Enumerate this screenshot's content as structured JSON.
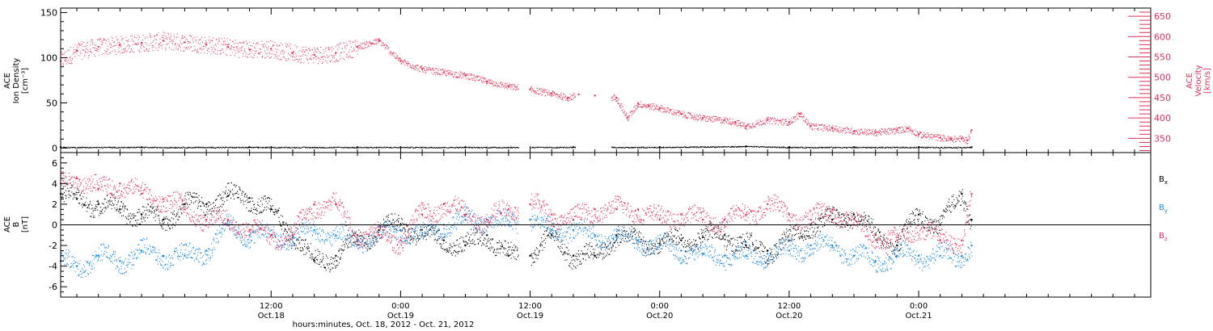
{
  "chart_data": [
    {
      "type": "scatter",
      "panel": "top",
      "xlabel": "hours:minutes, Oct. 18, 2012 - Oct. 21, 2012",
      "x_range_hours": [
        -7.5,
        93.5
      ],
      "x_ticks": [
        {
          "hours": 12,
          "time": "12:00",
          "date": "Oct.18"
        },
        {
          "hours": 24,
          "time": "0:00",
          "date": "Oct.19"
        },
        {
          "hours": 36,
          "time": "12:00",
          "date": "Oct.19"
        },
        {
          "hours": 48,
          "time": "0:00",
          "date": "Oct.20"
        },
        {
          "hours": 60,
          "time": "12:00",
          "date": "Oct.20"
        },
        {
          "hours": 72,
          "time": "0:00",
          "date": "Oct.21"
        }
      ],
      "y_left": {
        "label_lines": [
          "ACE",
          "Ion Density",
          "[cm⁻³]"
        ],
        "ylim": [
          -5,
          155
        ],
        "ticks": [
          0,
          50,
          100,
          150
        ],
        "color": "#000000"
      },
      "y_right": {
        "label_lines": [
          "ACE",
          "Velocity",
          "[km/s]"
        ],
        "ylim": [
          315,
          670
        ],
        "ticks": [
          350,
          400,
          450,
          500,
          550,
          600,
          650
        ],
        "color": "#e0305a"
      },
      "series": [
        {
          "name": "",
          "axis": "right",
          "color": "#e0305a",
          "x": [
            -7.5,
            -6,
            -4,
            -2,
            0,
            2,
            4,
            6,
            8,
            10,
            12,
            14,
            16,
            18,
            20,
            22,
            24,
            26,
            28,
            30,
            32,
            34,
            36,
            38,
            39.5,
            40.5,
            42,
            44,
            45,
            46,
            47,
            48,
            50,
            52,
            54,
            55,
            56,
            58,
            60,
            61,
            62,
            64,
            66,
            68,
            70,
            71,
            72,
            74,
            75,
            76,
            76.5,
            76.9
          ],
          "y": [
            540,
            565,
            575,
            580,
            585,
            590,
            586,
            580,
            575,
            568,
            570,
            560,
            555,
            560,
            575,
            590,
            540,
            520,
            512,
            505,
            490,
            478,
            470,
            460,
            450,
            458,
            455,
            450,
            400,
            435,
            430,
            425,
            410,
            400,
            395,
            390,
            380,
            395,
            390,
            410,
            380,
            375,
            368,
            365,
            370,
            375,
            360,
            352,
            348,
            350,
            345,
            370
          ]
        },
        {
          "name": "",
          "axis": "left",
          "color": "#000000",
          "x": [
            -7.5,
            0,
            10,
            20,
            30,
            40,
            48,
            56,
            60,
            66,
            72,
            76.9
          ],
          "y": [
            1,
            1,
            1,
            1,
            1,
            1,
            1,
            2,
            1,
            1,
            1,
            1
          ]
        }
      ],
      "data_gaps_hours": [
        [
          34.9,
          36
        ],
        [
          40.2,
          43.5
        ]
      ]
    },
    {
      "type": "scatter",
      "panel": "bottom",
      "y_left": {
        "label_lines": [
          "ACE",
          "B",
          "[nT]"
        ],
        "ylim": [
          -7,
          7
        ],
        "ticks": [
          -6,
          -4,
          -2,
          0,
          2,
          4,
          6
        ],
        "color": "#000000"
      },
      "zero_line": true,
      "series": [
        {
          "name": "Bx",
          "color": "#000000",
          "x": [
            -7.5,
            -6,
            -4,
            -2,
            0,
            2,
            4,
            6,
            8,
            10,
            12,
            14,
            16,
            18,
            20,
            22,
            24,
            26,
            28,
            30,
            32,
            34,
            36,
            38,
            40,
            42,
            44,
            46,
            48,
            50,
            52,
            54,
            56,
            58,
            60,
            62,
            64,
            66,
            68,
            70,
            72,
            74,
            76,
            76.9
          ],
          "y": [
            3,
            2.5,
            2,
            1.5,
            1,
            0.5,
            2,
            2,
            2.8,
            2.6,
            1.5,
            -1,
            -3.5,
            -3,
            -1.5,
            -0.5,
            0,
            -1,
            -1.5,
            -2,
            -1,
            -3,
            -3,
            -1,
            -3,
            -3,
            -1,
            -1.5,
            -1.8,
            -1.5,
            -1.2,
            -1,
            -2,
            -2.5,
            -1.5,
            0,
            0.5,
            1,
            -1,
            -2,
            1,
            0,
            3,
            0.5
          ]
        },
        {
          "name": "By",
          "color": "#1a88e0",
          "x": [
            -7.5,
            -6,
            -4,
            -2,
            0,
            2,
            4,
            6,
            8,
            10,
            12,
            14,
            16,
            18,
            20,
            22,
            24,
            26,
            28,
            30,
            32,
            34,
            36,
            38,
            40,
            42,
            44,
            46,
            48,
            50,
            52,
            54,
            56,
            58,
            60,
            62,
            64,
            66,
            68,
            70,
            72,
            74,
            76,
            76.9
          ],
          "y": [
            -3.5,
            -4,
            -3,
            -3.5,
            -2.5,
            -3,
            -3,
            -2.5,
            0,
            -1,
            -1,
            -1.2,
            -0.5,
            -1,
            -1.5,
            -1,
            -0.5,
            -1,
            0,
            0.5,
            0.5,
            0,
            0.5,
            -0.5,
            -0.5,
            -1,
            -1.2,
            -1.5,
            -2,
            -2.5,
            -2.8,
            -3,
            -3,
            -2.8,
            -2.5,
            -2,
            -2,
            -3,
            -3.5,
            -3,
            -3,
            -3,
            -3,
            -2
          ]
        },
        {
          "name": "Bz",
          "color": "#e0305a",
          "x": [
            -7.5,
            -6,
            -4,
            -2,
            0,
            2,
            4,
            6,
            8,
            10,
            12,
            14,
            16,
            18,
            20,
            22,
            24,
            26,
            28,
            30,
            32,
            34,
            36,
            38,
            40,
            42,
            44,
            46,
            48,
            50,
            52,
            54,
            56,
            58,
            60,
            62,
            64,
            66,
            68,
            70,
            72,
            74,
            76,
            76.9
          ],
          "y": [
            4,
            4.5,
            3.5,
            4,
            3,
            2.5,
            1.5,
            0.5,
            0.5,
            -0.5,
            -1,
            -1,
            2,
            2,
            -1,
            -1,
            -1.5,
            1,
            2,
            1,
            0.5,
            1.5,
            2,
            1,
            0.5,
            1.5,
            1.5,
            1.5,
            0.5,
            1,
            0.5,
            0.5,
            1,
            2,
            1,
            0.5,
            1.5,
            0,
            -1,
            -1.5,
            0,
            -1.5,
            -1.5,
            3
          ]
        }
      ]
    }
  ],
  "legend": [
    {
      "base": "B",
      "sub": "x",
      "color": "#000000"
    },
    {
      "base": "B",
      "sub": "y",
      "color": "#1a88e0"
    },
    {
      "base": "B",
      "sub": "z",
      "color": "#e0305a"
    }
  ]
}
